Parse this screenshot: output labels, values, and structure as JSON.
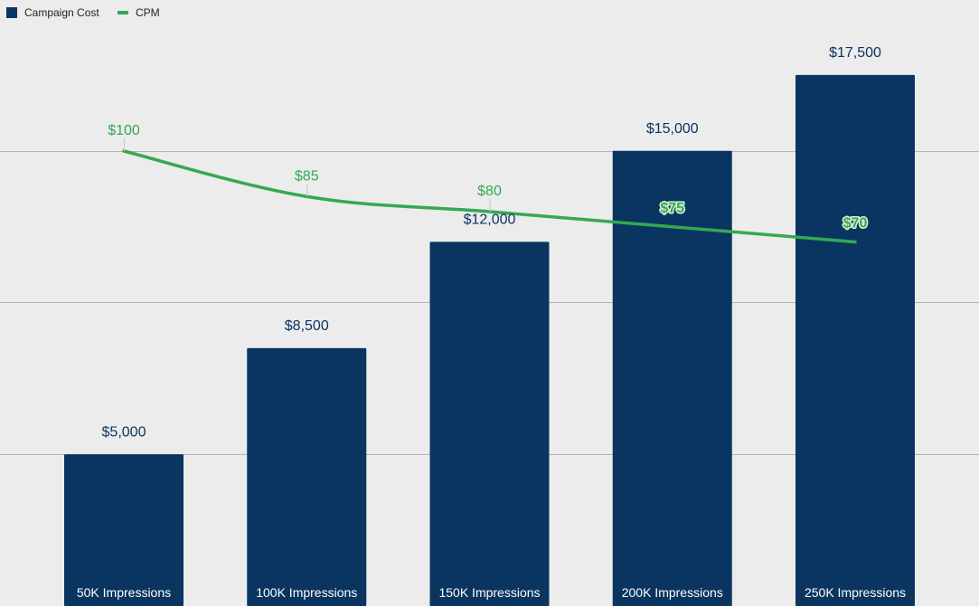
{
  "chart_data": {
    "type": "bar",
    "title": "",
    "xlabel": "",
    "ylabel": "",
    "categories": [
      "50K Impressions",
      "100K Impressions",
      "150K Impressions",
      "200K Impressions",
      "250K Impressions"
    ],
    "series": [
      {
        "name": "Campaign Cost",
        "type": "bar",
        "axis": "left",
        "values": [
          5000,
          8500,
          12000,
          15000,
          17500
        ],
        "labels": [
          "$5,000",
          "$8,500",
          "$12,000",
          "$15,000",
          "$17,500"
        ],
        "color": "#0a3561"
      },
      {
        "name": "CPM",
        "type": "line",
        "axis": "right",
        "values": [
          100,
          85,
          80,
          75,
          70
        ],
        "labels": [
          "$100",
          "$85",
          "$80",
          "$75",
          "$70"
        ],
        "color": "#34a853"
      }
    ],
    "ylim_left": [
      0,
      20000
    ],
    "ylim_right": [
      0,
      120
    ],
    "gridlines": [
      5000,
      10000,
      15000
    ],
    "grid": true,
    "legend": "top-left"
  },
  "colors": {
    "background": "#ececec",
    "grid": "#b5b5b5",
    "bar_label": "#0a3561",
    "line_label": "#34a853",
    "label_halo": "#d4f2d4",
    "category_label": "#ffffff"
  }
}
